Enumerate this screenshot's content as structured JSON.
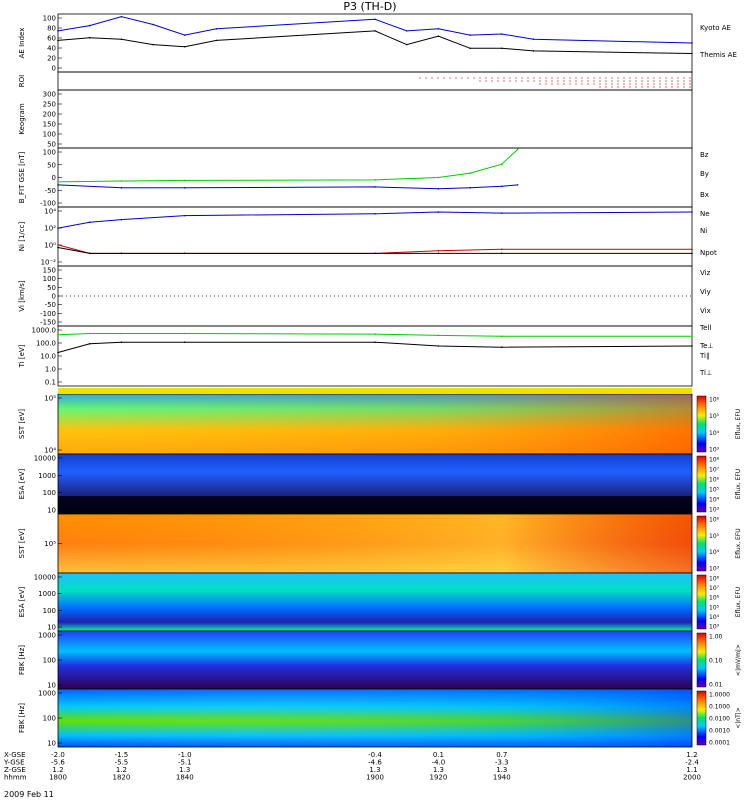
{
  "title": "P3 (TH-D)",
  "date_label": "2009 Feb 11",
  "colors": {
    "kyoto": "#0000cc",
    "themis": "#000000",
    "bz": "#cc0000",
    "by": "#00cc00",
    "bx": "#0000cc",
    "roi": "#cc0000"
  },
  "panels": [
    {
      "id": "ae",
      "ylabel": "AE Index",
      "ymin": -10,
      "ymax": 100,
      "ticks": [
        "0",
        "20",
        "40",
        "60",
        "80",
        "100"
      ],
      "legend": [
        "Kyoto AE",
        "Themis AE"
      ]
    },
    {
      "id": "roi",
      "ylabel": "ROI",
      "ticks": [],
      "legend": []
    },
    {
      "id": "keogram",
      "ylabel": "Keogram",
      "ymin": 0,
      "ymax": 300,
      "ticks": [
        "50",
        "100",
        "150",
        "200",
        "250",
        "300"
      ],
      "legend": []
    },
    {
      "id": "bfit",
      "ylabel": "B_FIT GSE [nT]",
      "ymin": -100,
      "ymax": 100,
      "ticks": [
        "-100",
        "-50",
        "0",
        "50",
        "100"
      ],
      "legend": [
        "Bz",
        "By",
        "Bx"
      ]
    },
    {
      "id": "ni",
      "ylabel": "Ni [1/cc]",
      "ticks": [
        "10⁻²",
        "10⁰",
        "10²",
        "10⁴"
      ],
      "legend": [
        "Ne",
        "Ni",
        "Npot"
      ]
    },
    {
      "id": "vi",
      "ylabel": "Vi [km/s]",
      "ymin": -175,
      "ymax": 175,
      "ticks": [
        "-150",
        "-100",
        "-50",
        "0",
        "50",
        "100",
        "150"
      ],
      "legend": [
        "Viz",
        "Viy",
        "Vix"
      ]
    },
    {
      "id": "ti",
      "ylabel": "Ti [eV]",
      "ticks": [
        "0.1",
        "1.0",
        "10.0",
        "100.0",
        "1000.0"
      ],
      "legend": [
        "Tell",
        "Te⊥",
        "Ti∥",
        "Ti⊥"
      ]
    },
    {
      "id": "sst1",
      "ylabel": "SST [eV]",
      "ticks": [
        "10⁴",
        "10⁵"
      ],
      "legend": []
    },
    {
      "id": "esa1",
      "ylabel": "ESA [eV]",
      "ticks": [
        "10",
        "100",
        "1000",
        "10000"
      ],
      "legend": []
    },
    {
      "id": "sst2",
      "ylabel": "SST [eV]",
      "ticks": [
        "10⁵"
      ],
      "legend": []
    },
    {
      "id": "esa2",
      "ylabel": "ESA [eV]",
      "ticks": [
        "10",
        "100",
        "1000",
        "10000"
      ],
      "legend": []
    },
    {
      "id": "fbk1",
      "ylabel": "FBK [Hz]",
      "ticks": [
        "10",
        "100",
        "1000"
      ],
      "legend": []
    },
    {
      "id": "fbk2",
      "ylabel": "FBK [Hz]",
      "ticks": [
        "10",
        "100",
        "1000"
      ],
      "legend": []
    }
  ],
  "colorbars": [
    {
      "panel": "sst1",
      "label": "Eflux, EFU",
      "ticks": [
        "10³",
        "10⁴",
        "10⁵",
        "10⁶"
      ]
    },
    {
      "panel": "esa1",
      "label": "Eflux, EFU",
      "ticks": [
        "10³",
        "10⁴",
        "10⁵",
        "10⁶",
        "10⁷",
        "10⁸"
      ]
    },
    {
      "panel": "sst2",
      "label": "Eflux, EFU",
      "ticks": [
        "10³",
        "10⁴",
        "10⁵",
        "10⁶"
      ]
    },
    {
      "panel": "esa2",
      "label": "Eflux, EFU",
      "ticks": [
        "10³",
        "10⁴",
        "10⁵",
        "10⁶",
        "10⁷",
        "10⁸"
      ]
    },
    {
      "panel": "fbk1",
      "label": "<|mV/m|>",
      "ticks": [
        "0.01",
        "0.10",
        "1.00"
      ]
    },
    {
      "panel": "fbk2",
      "label": "<|nT|>",
      "ticks": [
        "0.0001",
        "0.0010",
        "0.0100",
        "0.1000",
        "1.0000"
      ]
    }
  ],
  "xaxis": {
    "row_labels": [
      "X-GSE",
      "Y-GSE",
      "Z-GSE",
      "hhmm"
    ],
    "ticks": [
      {
        "x": "-2.0",
        "y": "-5.6",
        "z": "1.2",
        "hhmm": "1800"
      },
      {
        "x": "-1.5",
        "y": "-5.5",
        "z": "1.2",
        "hhmm": "1820"
      },
      {
        "x": "-1.0",
        "y": "-5.1",
        "z": "1.3",
        "hhmm": "1840"
      },
      {
        "x": "-0.4",
        "y": "-4.6",
        "z": "1.3",
        "hhmm": "1900"
      },
      {
        "x": "0.1",
        "y": "-4.0",
        "z": "1.3",
        "hhmm": "1920"
      },
      {
        "x": "0.7",
        "y": "-3.3",
        "z": "1.3",
        "hhmm": "1940"
      },
      {
        "x": "1.2",
        "y": "-2.4",
        "z": "1.1",
        "hhmm": "2000"
      }
    ]
  },
  "chart_data": [
    {
      "type": "line",
      "panel": "ae",
      "x": [
        1800,
        1810,
        1820,
        1830,
        1840,
        1850,
        1900,
        1910,
        1920,
        1930,
        1940,
        1950,
        2000
      ],
      "series": [
        {
          "name": "Kyoto AE",
          "values": [
            68,
            78,
            95,
            80,
            60,
            72,
            90,
            68,
            72,
            60,
            62,
            52,
            45
          ]
        },
        {
          "name": "Themis AE",
          "values": [
            50,
            55,
            52,
            42,
            38,
            50,
            68,
            42,
            58,
            35,
            35,
            30,
            25
          ]
        }
      ]
    },
    {
      "type": "line",
      "panel": "bfit",
      "x": [
        1800,
        1820,
        1840,
        1900,
        1920,
        1930,
        1940,
        1945
      ],
      "series": [
        {
          "name": "By",
          "values": [
            -15,
            -12,
            -10,
            -8,
            0,
            15,
            45,
            95
          ]
        },
        {
          "name": "Bx",
          "values": [
            -25,
            -35,
            -35,
            -32,
            -38,
            -35,
            -30,
            -25
          ]
        }
      ]
    },
    {
      "type": "line",
      "panel": "ni",
      "x": [
        1800,
        1810,
        1820,
        1840,
        1900,
        1920,
        1940,
        2000
      ],
      "series": [
        {
          "name": "Ni",
          "values": [
            100,
            500,
            1000,
            3000,
            5000,
            8000,
            6000,
            8000
          ]
        },
        {
          "name": "Ne",
          "values": [
            1,
            0.1,
            0.1,
            0.1,
            0.1,
            0.2,
            0.3,
            0.3
          ]
        },
        {
          "name": "Npot",
          "values": [
            0.5,
            0.1,
            0.1,
            0.1,
            0.1,
            0.1,
            0.1,
            0.1
          ]
        }
      ]
    },
    {
      "type": "line",
      "panel": "ti",
      "x": [
        1800,
        1810,
        1820,
        1840,
        1900,
        1920,
        1940,
        2000
      ],
      "series": [
        {
          "name": "Ti∥",
          "values": [
            800,
            1000,
            1000,
            1000,
            900,
            700,
            600,
            600
          ]
        },
        {
          "name": "Tell",
          "values": [
            30,
            150,
            200,
            200,
            200,
            100,
            80,
            100
          ]
        }
      ]
    },
    {
      "type": "heatmap",
      "panel": "sst1",
      "description_from_colorbar": "Eflux, EFU"
    },
    {
      "type": "heatmap",
      "panel": "esa1",
      "description_from_colorbar": "Eflux, EFU"
    },
    {
      "type": "heatmap",
      "panel": "sst2",
      "description_from_colorbar": "Eflux, EFU"
    },
    {
      "type": "heatmap",
      "panel": "esa2",
      "description_from_colorbar": "Eflux, EFU"
    },
    {
      "type": "heatmap",
      "panel": "fbk1",
      "description_from_colorbar": "<|mV/m|>"
    },
    {
      "type": "heatmap",
      "panel": "fbk2",
      "description_from_colorbar": "<|nT|>"
    }
  ]
}
